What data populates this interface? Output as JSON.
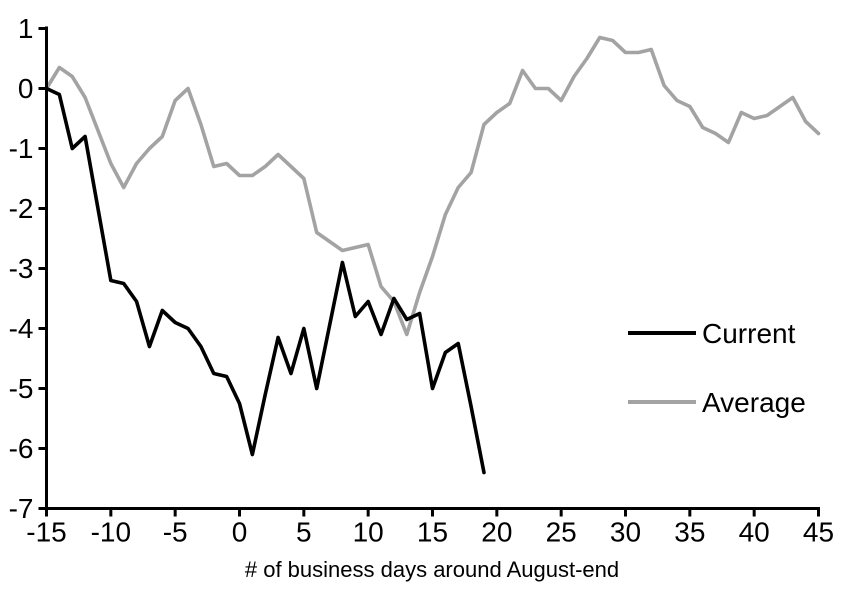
{
  "chart_data": {
    "type": "line",
    "title": "",
    "xlabel": "# of business days around August-end",
    "ylabel": "",
    "xlim": [
      -15,
      45
    ],
    "ylim": [
      -7,
      1
    ],
    "x_ticks": [
      -15,
      -10,
      -5,
      0,
      5,
      10,
      15,
      20,
      25,
      30,
      35,
      40,
      45
    ],
    "y_ticks": [
      1,
      0,
      -1,
      -2,
      -3,
      -4,
      -5,
      -6,
      -7
    ],
    "grid": false,
    "legend_position": "right-middle",
    "axis_color": "#000000",
    "background_color": "#ffffff",
    "series": [
      {
        "name": "Current",
        "color": "#000000",
        "x_start": -15,
        "x_end": 19,
        "values": [
          0.0,
          -0.1,
          -1.0,
          -0.8,
          -2.0,
          -3.2,
          -3.25,
          -3.55,
          -4.3,
          -3.7,
          -3.9,
          -4.0,
          -4.3,
          -4.75,
          -4.8,
          -5.25,
          -6.1,
          -5.1,
          -4.15,
          -4.75,
          -4.0,
          -5.0,
          -3.95,
          -2.9,
          -3.8,
          -3.55,
          -4.1,
          -3.5,
          -3.85,
          -3.75,
          -5.0,
          -4.4,
          -4.25,
          -5.3,
          -6.4
        ]
      },
      {
        "name": "Average",
        "color": "#a3a3a3",
        "x_start": -15,
        "x_end": 45,
        "values": [
          0.0,
          0.35,
          0.2,
          -0.15,
          -0.7,
          -1.25,
          -1.65,
          -1.25,
          -1.0,
          -0.8,
          -0.2,
          0.0,
          -0.6,
          -1.3,
          -1.25,
          -1.45,
          -1.45,
          -1.3,
          -1.1,
          -1.3,
          -1.5,
          -2.4,
          -2.55,
          -2.7,
          -2.65,
          -2.6,
          -3.3,
          -3.55,
          -4.1,
          -3.4,
          -2.8,
          -2.1,
          -1.65,
          -1.4,
          -0.6,
          -0.4,
          -0.25,
          0.3,
          0.0,
          0.0,
          -0.2,
          0.2,
          0.5,
          0.85,
          0.8,
          0.6,
          0.6,
          0.65,
          0.05,
          -0.2,
          -0.3,
          -0.65,
          -0.75,
          -0.9,
          -0.4,
          -0.5,
          -0.45,
          -0.3,
          -0.15,
          -0.55,
          -0.75
        ]
      }
    ]
  }
}
